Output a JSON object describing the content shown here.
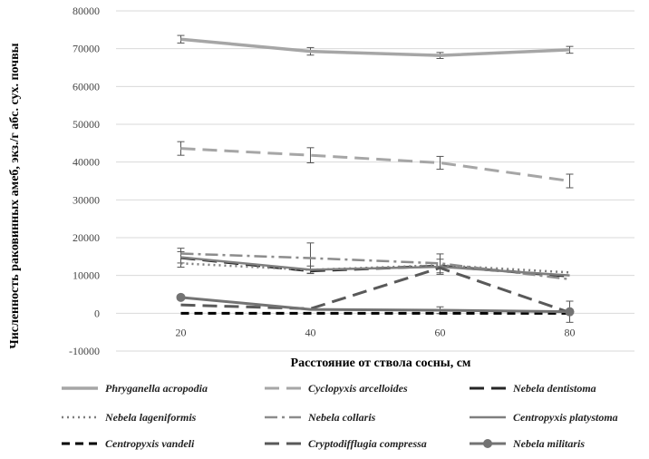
{
  "chart_data": {
    "type": "line",
    "title": "",
    "xlabel": "Расстояние от ствола сосны, см",
    "ylabel": "Численность раковинных амеб, экз./г абс. сух. почвы",
    "x": [
      20,
      40,
      60,
      80
    ],
    "x_tick_labels": [
      "20",
      "40",
      "60",
      "80"
    ],
    "ylim": [
      -10000,
      80000
    ],
    "y_ticks": [
      -10000,
      0,
      10000,
      20000,
      30000,
      40000,
      50000,
      60000,
      70000,
      80000
    ],
    "y_tick_labels": [
      "-10000",
      "0",
      "10000",
      "20000",
      "30000",
      "40000",
      "50000",
      "60000",
      "70000",
      "80000"
    ],
    "grid": "horizontal",
    "legend_position": "bottom",
    "series": [
      {
        "name": "Phryganella acropodia",
        "values": [
          72500,
          69300,
          68200,
          69700
        ],
        "errors": [
          1000,
          1000,
          800,
          900
        ],
        "color": "#a6a6a6",
        "dash": "solid",
        "width": 3.5,
        "marker": "none"
      },
      {
        "name": "Cyclopyxis arcelloides",
        "values": [
          43600,
          41800,
          39800,
          35000
        ],
        "errors": [
          1800,
          2000,
          1700,
          1800
        ],
        "color": "#a6a6a6",
        "dash": "long-dash",
        "width": 3,
        "marker": "none"
      },
      {
        "name": "Nebela dentistoma",
        "values": [
          14700,
          11200,
          12500,
          9800
        ],
        "errors": [
          2500,
          0,
          0,
          0
        ],
        "color": "#262626",
        "dash": "long-dash",
        "width": 3,
        "marker": "none"
      },
      {
        "name": "Nebela lageniformis",
        "values": [
          13200,
          11500,
          12700,
          10800
        ],
        "errors": [
          0,
          0,
          0,
          0
        ],
        "color": "#7f7f7f",
        "dash": "dot",
        "width": 2.5,
        "marker": "none"
      },
      {
        "name": "Nebela collaris",
        "values": [
          15800,
          14600,
          13200,
          9000
        ],
        "errors": [
          0,
          4000,
          2500,
          0
        ],
        "color": "#8c8c8c",
        "dash": "dash-dot",
        "width": 2.5,
        "marker": "none"
      },
      {
        "name": "Centropyxis platystoma",
        "values": [
          14800,
          11500,
          12300,
          10000
        ],
        "errors": [
          1500,
          1000,
          2000,
          0
        ],
        "color": "#7f7f7f",
        "dash": "solid",
        "width": 2.5,
        "marker": "none"
      },
      {
        "name": "Centropyxis vandeli",
        "values": [
          0,
          0,
          0,
          0
        ],
        "errors": [
          0,
          0,
          0,
          0
        ],
        "color": "#000000",
        "dash": "dash",
        "width": 3,
        "marker": "none"
      },
      {
        "name": "Cryptodifflugia compressa",
        "values": [
          2200,
          1200,
          12000,
          200
        ],
        "errors": [
          0,
          0,
          0,
          0
        ],
        "color": "#595959",
        "dash": "long-dash",
        "width": 3,
        "marker": "none"
      },
      {
        "name": "Nebela militaris",
        "values": [
          4200,
          1000,
          800,
          400
        ],
        "errors": [
          0,
          0,
          900,
          2800
        ],
        "color": "#737373",
        "dash": "solid",
        "width": 3,
        "marker": "circle"
      }
    ]
  }
}
